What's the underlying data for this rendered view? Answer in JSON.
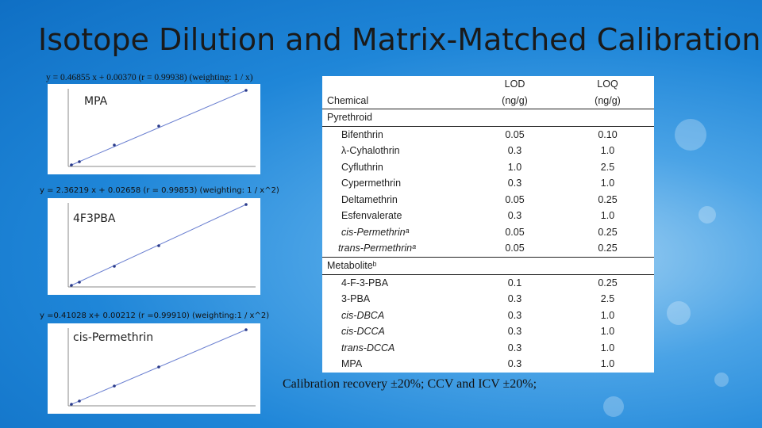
{
  "title": "Isotope Dilution and Matrix-Matched Calibration",
  "curves": [
    {
      "equation": "y = 0.46855 x + 0.00370 (r = 0.99938)  (weighting: 1 / x)",
      "label": "MPA"
    },
    {
      "equation": "y = 2.36219 x + 0.02658 (r = 0.99853)  (weighting: 1 / x^2)",
      "label": "4F3PBA"
    },
    {
      "equation": "y =0.41028 x+ 0.00212 (r =0.99910)  (weighting:1 / x^2)",
      "label": "cis-Permethrin"
    }
  ],
  "table": {
    "col_chemical": "Chemical",
    "col_lod": "LOD",
    "col_lod_unit": "(ng/g)",
    "col_loq": "LOQ",
    "col_loq_unit": "(ng/g)",
    "section_pyrethroid": "Pyrethroid",
    "pyrethroids": [
      {
        "name": "Bifenthrin",
        "lod": "0.05",
        "loq": "0.10"
      },
      {
        "name": "λ-Cyhalothrin",
        "lod": "0.3",
        "loq": "1.0"
      },
      {
        "name": "Cyfluthrin",
        "lod": "1.0",
        "loq": "2.5"
      },
      {
        "name": "Cypermethrin",
        "lod": "0.3",
        "loq": "1.0"
      },
      {
        "name": "Deltamethrin",
        "lod": "0.05",
        "loq": "0.25"
      },
      {
        "name": "Esfenvalerate",
        "lod": "0.3",
        "loq": "1.0"
      },
      {
        "name": "cis-Permethrinᵃ",
        "lod": "0.05",
        "loq": "0.25"
      },
      {
        "name": "trans-Permethrinᵃ",
        "lod": "0.05",
        "loq": "0.25"
      }
    ],
    "section_metabolite": "Metaboliteᵇ",
    "metabolites": [
      {
        "name": "4-F-3-PBA",
        "lod": "0.1",
        "loq": "0.25"
      },
      {
        "name": "3-PBA",
        "lod": "0.3",
        "loq": "2.5"
      },
      {
        "name": "cis-DBCA",
        "lod": "0.3",
        "loq": "1.0"
      },
      {
        "name": "cis-DCCA",
        "lod": "0.3",
        "loq": "1.0"
      },
      {
        "name": "trans-DCCA",
        "lod": "0.3",
        "loq": "1.0"
      },
      {
        "name": "MPA",
        "lod": "0.3",
        "loq": "1.0"
      }
    ]
  },
  "note": "Calibration recovery ±20%; CCV and ICV  ±20%;"
}
